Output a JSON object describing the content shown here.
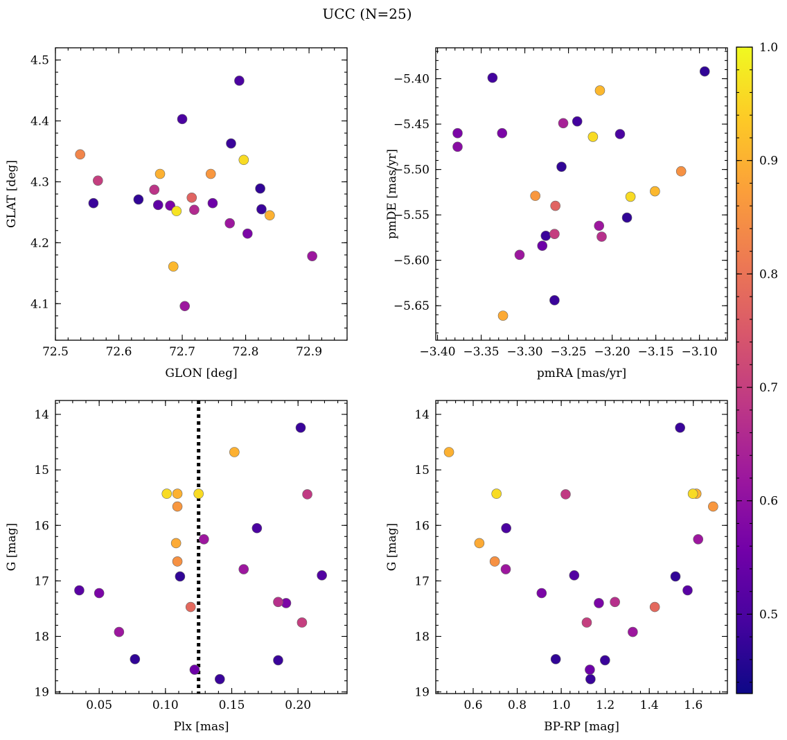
{
  "title": "UCC (N=25)",
  "colorbar": {
    "min": 0.43,
    "max": 1.0,
    "ticks": [
      0.5,
      0.6,
      0.7,
      0.8,
      0.9,
      1.0
    ],
    "tick_labels": [
      "0.5",
      "0.6",
      "0.7",
      "0.8",
      "0.9",
      "1.0"
    ],
    "colormap": "plasma",
    "colormap_stops": [
      "#0d0887",
      "#46039f",
      "#7201a8",
      "#9c179e",
      "#bd3786",
      "#d8576b",
      "#ed7953",
      "#fb9f3a",
      "#fdca26",
      "#f0f921"
    ],
    "display_range": [
      0.43,
      1.0
    ]
  },
  "chart_data": [
    {
      "type": "scatter",
      "name": "glon-glat",
      "xlabel": "GLON [deg]",
      "ylabel": "GLAT [deg]",
      "xlim": [
        72.5,
        72.96
      ],
      "ylim": [
        4.04,
        4.52
      ],
      "y_inverted": false,
      "xticks": [
        72.5,
        72.6,
        72.7,
        72.8,
        72.9
      ],
      "xtick_labels": [
        "72.5",
        "72.6",
        "72.7",
        "72.8",
        "72.9"
      ],
      "yticks": [
        4.1,
        4.2,
        4.3,
        4.4,
        4.5
      ],
      "ytick_labels": [
        "4.1",
        "4.2",
        "4.3",
        "4.4",
        "4.5"
      ],
      "points": [
        {
          "x": 72.79,
          "y": 4.466,
          "c": 0.5
        },
        {
          "x": 72.7,
          "y": 4.403,
          "c": 0.5
        },
        {
          "x": 72.777,
          "y": 4.363,
          "c": 0.48
        },
        {
          "x": 72.539,
          "y": 4.345,
          "c": 0.83
        },
        {
          "x": 72.797,
          "y": 4.336,
          "c": 0.96
        },
        {
          "x": 72.665,
          "y": 4.313,
          "c": 0.9
        },
        {
          "x": 72.745,
          "y": 4.313,
          "c": 0.86
        },
        {
          "x": 72.567,
          "y": 4.302,
          "c": 0.7
        },
        {
          "x": 72.823,
          "y": 4.289,
          "c": 0.47
        },
        {
          "x": 72.656,
          "y": 4.287,
          "c": 0.68
        },
        {
          "x": 72.715,
          "y": 4.274,
          "c": 0.77
        },
        {
          "x": 72.631,
          "y": 4.271,
          "c": 0.47
        },
        {
          "x": 72.56,
          "y": 4.265,
          "c": 0.48
        },
        {
          "x": 72.748,
          "y": 4.265,
          "c": 0.55
        },
        {
          "x": 72.662,
          "y": 4.262,
          "c": 0.53
        },
        {
          "x": 72.681,
          "y": 4.261,
          "c": 0.57
        },
        {
          "x": 72.825,
          "y": 4.255,
          "c": 0.48
        },
        {
          "x": 72.719,
          "y": 4.254,
          "c": 0.66
        },
        {
          "x": 72.691,
          "y": 4.252,
          "c": 0.97
        },
        {
          "x": 72.838,
          "y": 4.245,
          "c": 0.9
        },
        {
          "x": 72.775,
          "y": 4.232,
          "c": 0.62
        },
        {
          "x": 72.803,
          "y": 4.215,
          "c": 0.57
        },
        {
          "x": 72.905,
          "y": 4.178,
          "c": 0.62
        },
        {
          "x": 72.686,
          "y": 4.161,
          "c": 0.91
        },
        {
          "x": 72.704,
          "y": 4.096,
          "c": 0.62
        }
      ]
    },
    {
      "type": "scatter",
      "name": "pmra-pmde",
      "xlabel": "pmRA [mas/yr]",
      "ylabel": "pmDE [mas/yr]",
      "xlim": [
        -3.402,
        -3.068
      ],
      "ylim": [
        -5.688,
        -5.366
      ],
      "y_inverted": false,
      "xticks": [
        -3.4,
        -3.35,
        -3.3,
        -3.25,
        -3.2,
        -3.15,
        -3.1
      ],
      "xtick_labels": [
        "−3.40",
        "−3.35",
        "−3.30",
        "−3.25",
        "−3.20",
        "−3.15",
        "−3.10"
      ],
      "yticks": [
        -5.65,
        -5.6,
        -5.55,
        -5.5,
        -5.45,
        -5.4
      ],
      "ytick_labels": [
        "−5.65",
        "−5.60",
        "−5.55",
        "−5.50",
        "−5.45",
        "−5.40"
      ],
      "points": [
        {
          "x": -3.094,
          "y": -5.392,
          "c": 0.47
        },
        {
          "x": -3.337,
          "y": -5.399,
          "c": 0.49
        },
        {
          "x": -3.214,
          "y": -5.413,
          "c": 0.91
        },
        {
          "x": -3.24,
          "y": -5.447,
          "c": 0.49
        },
        {
          "x": -3.256,
          "y": -5.449,
          "c": 0.64
        },
        {
          "x": -3.377,
          "y": -5.46,
          "c": 0.57
        },
        {
          "x": -3.326,
          "y": -5.46,
          "c": 0.57
        },
        {
          "x": -3.191,
          "y": -5.461,
          "c": 0.5
        },
        {
          "x": -3.222,
          "y": -5.464,
          "c": 0.96
        },
        {
          "x": -3.377,
          "y": -5.475,
          "c": 0.59
        },
        {
          "x": -3.258,
          "y": -5.497,
          "c": 0.47
        },
        {
          "x": -3.121,
          "y": -5.502,
          "c": 0.85
        },
        {
          "x": -3.151,
          "y": -5.524,
          "c": 0.91
        },
        {
          "x": -3.288,
          "y": -5.529,
          "c": 0.86
        },
        {
          "x": -3.179,
          "y": -5.53,
          "c": 0.96
        },
        {
          "x": -3.265,
          "y": -5.54,
          "c": 0.77
        },
        {
          "x": -3.183,
          "y": -5.553,
          "c": 0.47
        },
        {
          "x": -3.215,
          "y": -5.562,
          "c": 0.62
        },
        {
          "x": -3.266,
          "y": -5.571,
          "c": 0.7
        },
        {
          "x": -3.276,
          "y": -5.573,
          "c": 0.48
        },
        {
          "x": -3.212,
          "y": -5.574,
          "c": 0.67
        },
        {
          "x": -3.28,
          "y": -5.584,
          "c": 0.55
        },
        {
          "x": -3.306,
          "y": -5.594,
          "c": 0.62
        },
        {
          "x": -3.266,
          "y": -5.644,
          "c": 0.48
        },
        {
          "x": -3.325,
          "y": -5.661,
          "c": 0.89
        }
      ]
    },
    {
      "type": "scatter",
      "name": "plx-g",
      "xlabel": "Plx [mas]",
      "ylabel": "G [mag]",
      "xlim": [
        0.017,
        0.237
      ],
      "ylim": [
        19.03,
        13.75
      ],
      "y_inverted": true,
      "xticks": [
        0.05,
        0.1,
        0.15,
        0.2
      ],
      "xtick_labels": [
        "0.05",
        "0.10",
        "0.15",
        "0.20"
      ],
      "yticks": [
        14,
        15,
        16,
        17,
        18,
        19
      ],
      "ytick_labels": [
        "14",
        "15",
        "16",
        "17",
        "18",
        "19"
      ],
      "vline": {
        "x": 0.125,
        "style": "dotted"
      },
      "points": [
        {
          "x": 0.202,
          "y": 14.24,
          "c": 0.48
        },
        {
          "x": 0.152,
          "y": 14.68,
          "c": 0.9
        },
        {
          "x": 0.101,
          "y": 15.43,
          "c": 0.96
        },
        {
          "x": 0.109,
          "y": 15.43,
          "c": 0.9
        },
        {
          "x": 0.125,
          "y": 15.43,
          "c": 0.96
        },
        {
          "x": 0.207,
          "y": 15.44,
          "c": 0.69
        },
        {
          "x": 0.109,
          "y": 15.66,
          "c": 0.86
        },
        {
          "x": 0.169,
          "y": 16.05,
          "c": 0.5
        },
        {
          "x": 0.129,
          "y": 16.25,
          "c": 0.62
        },
        {
          "x": 0.108,
          "y": 16.32,
          "c": 0.89
        },
        {
          "x": 0.109,
          "y": 16.65,
          "c": 0.85
        },
        {
          "x": 0.159,
          "y": 16.79,
          "c": 0.62
        },
        {
          "x": 0.218,
          "y": 16.9,
          "c": 0.51
        },
        {
          "x": 0.111,
          "y": 16.92,
          "c": 0.47
        },
        {
          "x": 0.035,
          "y": 17.17,
          "c": 0.52
        },
        {
          "x": 0.05,
          "y": 17.22,
          "c": 0.57
        },
        {
          "x": 0.185,
          "y": 17.38,
          "c": 0.67
        },
        {
          "x": 0.191,
          "y": 17.4,
          "c": 0.57
        },
        {
          "x": 0.119,
          "y": 17.47,
          "c": 0.78
        },
        {
          "x": 0.203,
          "y": 17.75,
          "c": 0.7
        },
        {
          "x": 0.065,
          "y": 17.92,
          "c": 0.62
        },
        {
          "x": 0.077,
          "y": 18.41,
          "c": 0.47
        },
        {
          "x": 0.185,
          "y": 18.43,
          "c": 0.48
        },
        {
          "x": 0.122,
          "y": 18.6,
          "c": 0.55
        },
        {
          "x": 0.141,
          "y": 18.77,
          "c": 0.48
        }
      ]
    },
    {
      "type": "scatter",
      "name": "bprp-g",
      "xlabel": "BP-RP [mag]",
      "ylabel": "G [mag]",
      "xlim": [
        0.43,
        1.755
      ],
      "ylim": [
        19.03,
        13.75
      ],
      "y_inverted": true,
      "xticks": [
        0.6,
        0.8,
        1.0,
        1.2,
        1.4,
        1.6
      ],
      "xtick_labels": [
        "0.6",
        "0.8",
        "1.0",
        "1.2",
        "1.4",
        "1.6"
      ],
      "yticks": [
        14,
        15,
        16,
        17,
        18,
        19
      ],
      "ytick_labels": [
        "14",
        "15",
        "16",
        "17",
        "18",
        "19"
      ],
      "points": [
        {
          "x": 1.54,
          "y": 14.24,
          "c": 0.48
        },
        {
          "x": 0.49,
          "y": 14.68,
          "c": 0.9
        },
        {
          "x": 0.706,
          "y": 15.43,
          "c": 0.96
        },
        {
          "x": 1.598,
          "y": 15.43,
          "c": 0.96
        },
        {
          "x": 1.614,
          "y": 15.43,
          "c": 0.9
        },
        {
          "x": 1.02,
          "y": 15.44,
          "c": 0.69
        },
        {
          "x": 1.69,
          "y": 15.66,
          "c": 0.86
        },
        {
          "x": 0.75,
          "y": 16.05,
          "c": 0.5
        },
        {
          "x": 1.622,
          "y": 16.25,
          "c": 0.62
        },
        {
          "x": 0.628,
          "y": 16.32,
          "c": 0.89
        },
        {
          "x": 0.698,
          "y": 16.65,
          "c": 0.85
        },
        {
          "x": 0.748,
          "y": 16.79,
          "c": 0.62
        },
        {
          "x": 1.059,
          "y": 16.9,
          "c": 0.51
        },
        {
          "x": 1.519,
          "y": 16.92,
          "c": 0.47
        },
        {
          "x": 1.574,
          "y": 17.17,
          "c": 0.52
        },
        {
          "x": 0.911,
          "y": 17.22,
          "c": 0.57
        },
        {
          "x": 1.244,
          "y": 17.38,
          "c": 0.67
        },
        {
          "x": 1.171,
          "y": 17.4,
          "c": 0.57
        },
        {
          "x": 1.425,
          "y": 17.47,
          "c": 0.78
        },
        {
          "x": 1.116,
          "y": 17.75,
          "c": 0.7
        },
        {
          "x": 1.325,
          "y": 17.92,
          "c": 0.62
        },
        {
          "x": 0.975,
          "y": 18.41,
          "c": 0.47
        },
        {
          "x": 1.199,
          "y": 18.43,
          "c": 0.48
        },
        {
          "x": 1.13,
          "y": 18.6,
          "c": 0.55
        },
        {
          "x": 1.133,
          "y": 18.77,
          "c": 0.48
        }
      ]
    }
  ]
}
